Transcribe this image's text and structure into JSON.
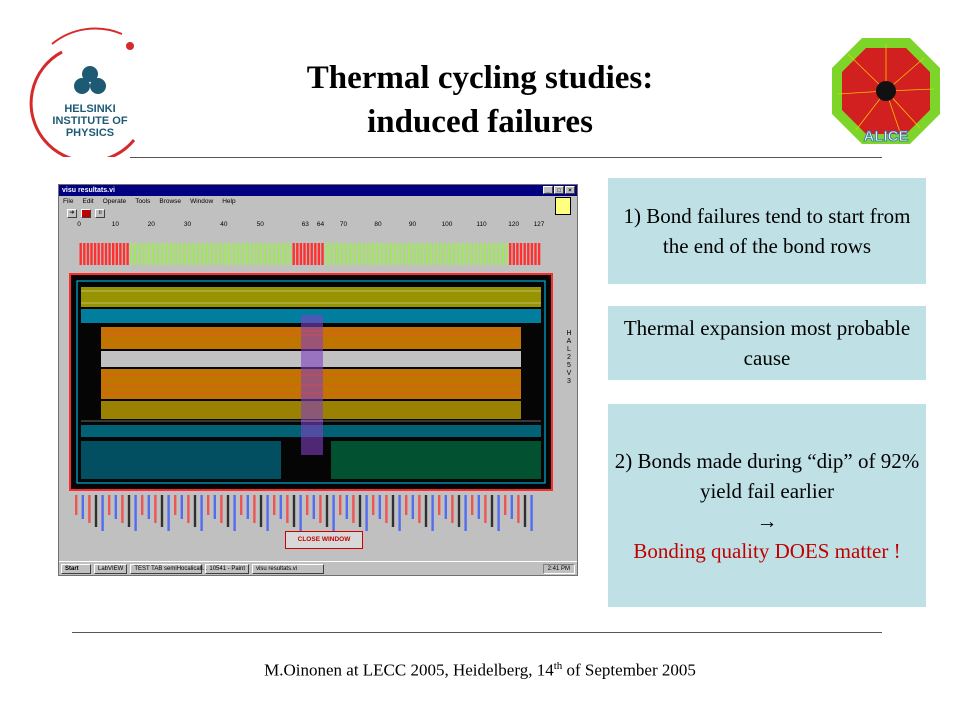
{
  "header": {
    "title_line1": "Thermal cycling studies:",
    "title_line2": "induced failures"
  },
  "logos": {
    "hip": {
      "line1": "HELSINKI",
      "line2": "INSTITUTE OF",
      "line3": "PHYSICS"
    },
    "alice": {
      "text": "ALICE"
    }
  },
  "screenshot": {
    "window_title": "visu resultats.vi",
    "menu": [
      "File",
      "Edit",
      "Operate",
      "Tools",
      "Browse",
      "Window",
      "Help"
    ],
    "ruler_ticks": [
      "0",
      "10",
      "20",
      "30",
      "40",
      "50",
      "63",
      "64",
      "70",
      "80",
      "90",
      "100",
      "110",
      "120",
      "127"
    ],
    "side_label": [
      "H",
      "A",
      "L",
      "2",
      "5",
      "",
      "V",
      "3"
    ],
    "close_button": "CLOSE WINDOW",
    "taskbar": {
      "start": "Start",
      "items": [
        "LabVIEW",
        "TEST TAB semiHocalicati...",
        "10541 - Paint",
        "visu resultats.vi"
      ],
      "clock": "2:41 PM"
    }
  },
  "callouts": {
    "box1": "1) Bond failures tend to start from the end of the bond rows",
    "box2": "Thermal expansion most probable cause",
    "box3_line1": "2) Bonds made during “dip” of 92% yield fail earlier",
    "box3_arrow": "→",
    "box3_line2": "Bonding quality DOES matter !"
  },
  "footer": {
    "prefix": "M.Oinonen at LECC 2005, Heidelberg, 14",
    "superscript": "th",
    "suffix": " of September 2005"
  },
  "colors": {
    "box_bg": "#bfe1e6",
    "emphasis_red": "#c00000",
    "chip_border": "#ff2a2a",
    "titlebar": "#000080"
  }
}
